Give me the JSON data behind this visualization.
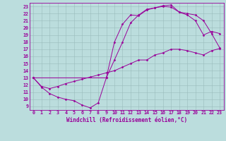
{
  "line1_x": [
    0,
    1,
    2,
    3,
    4,
    5,
    6,
    7,
    8,
    9,
    10,
    11,
    12,
    13,
    14,
    15,
    16,
    17,
    18,
    19,
    20,
    21,
    22,
    23
  ],
  "line1_y": [
    13.0,
    11.7,
    10.8,
    10.3,
    10.0,
    9.8,
    9.2,
    8.8,
    9.5,
    13.0,
    18.0,
    20.5,
    21.8,
    21.7,
    22.5,
    22.8,
    23.0,
    22.9,
    22.2,
    21.8,
    21.0,
    19.0,
    19.5,
    19.2
  ],
  "line2_x": [
    0,
    1,
    2,
    3,
    4,
    5,
    6,
    7,
    8,
    9,
    10,
    11,
    12,
    13,
    14,
    15,
    16,
    17,
    18,
    19,
    20,
    21,
    22,
    23
  ],
  "line2_y": [
    13.0,
    11.8,
    11.5,
    11.8,
    12.2,
    12.5,
    12.8,
    13.1,
    13.4,
    13.7,
    14.0,
    14.5,
    15.0,
    15.5,
    15.5,
    16.2,
    16.5,
    17.0,
    17.0,
    16.8,
    16.5,
    16.2,
    16.8,
    17.1
  ],
  "line3_x": [
    0,
    9,
    10,
    11,
    12,
    13,
    14,
    15,
    16,
    17,
    18,
    19,
    20,
    21,
    22,
    23
  ],
  "line3_y": [
    13.0,
    13.0,
    15.5,
    18.0,
    20.7,
    21.8,
    22.6,
    22.8,
    23.1,
    23.2,
    22.2,
    22.0,
    21.8,
    21.0,
    19.2,
    17.2
  ],
  "color": "#990099",
  "bg_color": "#bbdddd",
  "grid_color": "#99bbbb",
  "xlabel": "Windchill (Refroidissement éolien,°C)",
  "xlim": [
    -0.5,
    23.5
  ],
  "ylim": [
    8.5,
    23.5
  ],
  "xticks": [
    0,
    1,
    2,
    3,
    4,
    5,
    6,
    7,
    8,
    9,
    10,
    11,
    12,
    13,
    14,
    15,
    16,
    17,
    18,
    19,
    20,
    21,
    22,
    23
  ],
  "yticks": [
    9,
    10,
    11,
    12,
    13,
    14,
    15,
    16,
    17,
    18,
    19,
    20,
    21,
    22,
    23
  ],
  "label_fontsize": 5.5,
  "tick_fontsize": 4.8
}
